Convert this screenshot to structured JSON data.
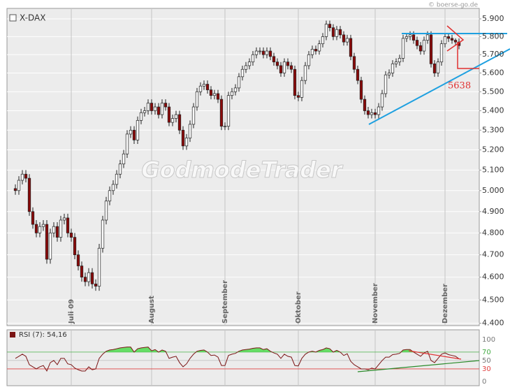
{
  "chart_data": [
    {
      "type": "candlestick",
      "title": "X-DAX",
      "watermark": "GodmodeTrader",
      "source": "© boerse-go.de",
      "annotation": "5638",
      "up_color": "#ffffff",
      "down_color": "#8b0a0a",
      "log_scale": true,
      "grid": true,
      "x": [
        0,
        1,
        2,
        3,
        4,
        5,
        6,
        7,
        8,
        9,
        10,
        11,
        12,
        13,
        14,
        15,
        16,
        17,
        18,
        19,
        20,
        21,
        22,
        23,
        24,
        25,
        26,
        27,
        28,
        29,
        30,
        31,
        32,
        33,
        34,
        35,
        36,
        37,
        38,
        39,
        40,
        41,
        42,
        43,
        44,
        45,
        46,
        47,
        48,
        49,
        50,
        51,
        52,
        53,
        54,
        55,
        56,
        57,
        58,
        59,
        60,
        61,
        62,
        63,
        64,
        65,
        66,
        67,
        68,
        69,
        70,
        71,
        72,
        73,
        74,
        75,
        76,
        77,
        78,
        79,
        80,
        81,
        82,
        83,
        84,
        85,
        86,
        87,
        88,
        89,
        90,
        91,
        92,
        93,
        94,
        95,
        96,
        97,
        98,
        99,
        100,
        101,
        102,
        103,
        104,
        105,
        106,
        107,
        108,
        109,
        110,
        111,
        112,
        113,
        114,
        115,
        116,
        117,
        118,
        119,
        120,
        121,
        122,
        123,
        124,
        125,
        126,
        127
      ],
      "open": [
        5010,
        5000,
        5050,
        5080,
        5060,
        4900,
        4840,
        4800,
        4830,
        4840,
        4680,
        4800,
        4830,
        4780,
        4860,
        4870,
        4800,
        4780,
        4700,
        4650,
        4600,
        4580,
        4620,
        4570,
        4560,
        4730,
        4860,
        4950,
        5000,
        5030,
        5080,
        5130,
        5180,
        5280,
        5300,
        5250,
        5350,
        5390,
        5400,
        5440,
        5400,
        5420,
        5380,
        5440,
        5420,
        5340,
        5360,
        5380,
        5300,
        5220,
        5260,
        5330,
        5420,
        5500,
        5530,
        5540,
        5510,
        5480,
        5490,
        5460,
        5320,
        5320,
        5480,
        5500,
        5520,
        5580,
        5620,
        5640,
        5660,
        5700,
        5720,
        5720,
        5700,
        5720,
        5690,
        5660,
        5640,
        5600,
        5660,
        5640,
        5620,
        5480,
        5470,
        5560,
        5640,
        5700,
        5730,
        5720,
        5760,
        5800,
        5870,
        5850,
        5800,
        5840,
        5810,
        5770,
        5790,
        5690,
        5620,
        5560,
        5460,
        5400,
        5380,
        5390,
        5380,
        5420,
        5490,
        5590,
        5600,
        5650,
        5660,
        5680,
        5790,
        5800,
        5810,
        5780,
        5750,
        5720,
        5780,
        5810,
        5650,
        5600,
        5660,
        5760,
        5800,
        5790,
        5780,
        5770
      ],
      "high": [
        5030,
        5070,
        5100,
        5100,
        5080,
        4920,
        4860,
        4850,
        4860,
        4860,
        4820,
        4850,
        4850,
        4880,
        4890,
        4890,
        4820,
        4800,
        4720,
        4670,
        4620,
        4640,
        4640,
        4590,
        4750,
        4880,
        4970,
        5020,
        5050,
        5100,
        5150,
        5200,
        5300,
        5320,
        5320,
        5370,
        5410,
        5420,
        5460,
        5460,
        5440,
        5440,
        5460,
        5460,
        5440,
        5380,
        5400,
        5400,
        5320,
        5280,
        5350,
        5440,
        5520,
        5550,
        5560,
        5560,
        5530,
        5510,
        5510,
        5480,
        5340,
        5500,
        5520,
        5540,
        5600,
        5640,
        5660,
        5680,
        5720,
        5740,
        5740,
        5740,
        5740,
        5740,
        5710,
        5680,
        5660,
        5680,
        5680,
        5660,
        5640,
        5500,
        5580,
        5660,
        5720,
        5750,
        5750,
        5780,
        5820,
        5890,
        5890,
        5870,
        5860,
        5860,
        5830,
        5810,
        5810,
        5710,
        5640,
        5580,
        5480,
        5420,
        5410,
        5410,
        5440,
        5510,
        5610,
        5620,
        5670,
        5680,
        5700,
        5810,
        5820,
        5830,
        5830,
        5800,
        5770,
        5800,
        5830,
        5830,
        5670,
        5680,
        5780,
        5820,
        5820,
        5810,
        5790,
        5790
      ],
      "low": [
        4980,
        4980,
        5030,
        5040,
        4880,
        4820,
        4780,
        4780,
        4810,
        4660,
        4660,
        4780,
        4760,
        4760,
        4840,
        4780,
        4760,
        4680,
        4630,
        4580,
        4560,
        4560,
        4550,
        4540,
        4540,
        4710,
        4840,
        4930,
        4980,
        5010,
        5060,
        5110,
        5160,
        5260,
        5230,
        5230,
        5330,
        5370,
        5380,
        5380,
        5380,
        5360,
        5360,
        5400,
        5320,
        5320,
        5340,
        5280,
        5200,
        5200,
        5240,
        5310,
        5400,
        5480,
        5510,
        5490,
        5460,
        5460,
        5440,
        5300,
        5300,
        5300,
        5460,
        5480,
        5500,
        5560,
        5600,
        5620,
        5640,
        5680,
        5700,
        5680,
        5680,
        5670,
        5640,
        5620,
        5580,
        5580,
        5620,
        5600,
        5460,
        5450,
        5450,
        5540,
        5620,
        5680,
        5700,
        5700,
        5740,
        5780,
        5830,
        5780,
        5780,
        5790,
        5750,
        5750,
        5670,
        5600,
        5540,
        5440,
        5380,
        5360,
        5360,
        5360,
        5360,
        5400,
        5470,
        5570,
        5580,
        5630,
        5640,
        5660,
        5770,
        5780,
        5760,
        5730,
        5700,
        5700,
        5760,
        5630,
        5580,
        5580,
        5640,
        5740,
        5770,
        5760,
        5750,
        5730
      ],
      "close": [
        5000,
        5050,
        5080,
        5060,
        4900,
        4840,
        4800,
        4830,
        4840,
        4680,
        4800,
        4830,
        4780,
        4860,
        4870,
        4800,
        4780,
        4700,
        4650,
        4600,
        4580,
        4620,
        4570,
        4560,
        4730,
        4860,
        4950,
        5000,
        5030,
        5080,
        5130,
        5180,
        5280,
        5300,
        5250,
        5350,
        5390,
        5400,
        5440,
        5400,
        5420,
        5380,
        5440,
        5420,
        5340,
        5360,
        5380,
        5300,
        5220,
        5260,
        5330,
        5420,
        5500,
        5530,
        5540,
        5510,
        5480,
        5490,
        5460,
        5320,
        5320,
        5480,
        5500,
        5520,
        5580,
        5620,
        5640,
        5660,
        5700,
        5720,
        5720,
        5700,
        5720,
        5690,
        5660,
        5640,
        5600,
        5660,
        5640,
        5620,
        5480,
        5470,
        5560,
        5640,
        5700,
        5730,
        5720,
        5760,
        5800,
        5870,
        5850,
        5800,
        5840,
        5810,
        5770,
        5790,
        5690,
        5620,
        5560,
        5460,
        5400,
        5380,
        5390,
        5380,
        5420,
        5490,
        5590,
        5600,
        5650,
        5660,
        5680,
        5790,
        5800,
        5810,
        5780,
        5750,
        5720,
        5780,
        5810,
        5650,
        5600,
        5660,
        5760,
        5800,
        5790,
        5780,
        5770,
        5750
      ],
      "xlim": [
        -2.4,
        132.8
      ],
      "xticks": [
        {
          "value": 16,
          "label": "Juli 09"
        },
        {
          "value": 39,
          "label": "August"
        },
        {
          "value": 60,
          "label": "September"
        },
        {
          "value": 81,
          "label": "Oktober"
        },
        {
          "value": 103,
          "label": "November"
        },
        {
          "value": 123,
          "label": "Dezember"
        }
      ],
      "ylim": [
        4390,
        5960
      ],
      "yticks": [
        {
          "value": 4400,
          "label": "4.400"
        },
        {
          "value": 4500,
          "label": "4.500"
        },
        {
          "value": 4600,
          "label": "4.600"
        },
        {
          "value": 4700,
          "label": "4.700"
        },
        {
          "value": 4800,
          "label": "4.800"
        },
        {
          "value": 4900,
          "label": "4.900"
        },
        {
          "value": 5000,
          "label": "5.000"
        },
        {
          "value": 5100,
          "label": "5.100"
        },
        {
          "value": 5200,
          "label": "5.200"
        },
        {
          "value": 5300,
          "label": "5.300"
        },
        {
          "value": 5400,
          "label": "5.400"
        },
        {
          "value": 5500,
          "label": "5.500"
        },
        {
          "value": 5600,
          "label": "5.600"
        },
        {
          "value": 5700,
          "label": "5.700"
        },
        {
          "value": 5800,
          "label": "5.800"
        },
        {
          "value": 5900,
          "label": "5.900"
        }
      ]
    },
    {
      "type": "line",
      "title": "RSI (7): 54,16",
      "color": "#7a1414",
      "fill_color": "#66dd66",
      "overbought": 70,
      "oversold": 30,
      "x": [
        0,
        1,
        2,
        3,
        4,
        5,
        6,
        7,
        8,
        9,
        10,
        11,
        12,
        13,
        14,
        15,
        16,
        17,
        18,
        19,
        20,
        21,
        22,
        23,
        24,
        25,
        26,
        27,
        28,
        29,
        30,
        31,
        32,
        33,
        34,
        35,
        36,
        37,
        38,
        39,
        40,
        41,
        42,
        43,
        44,
        45,
        46,
        47,
        48,
        49,
        50,
        51,
        52,
        53,
        54,
        55,
        56,
        57,
        58,
        59,
        60,
        61,
        62,
        63,
        64,
        65,
        66,
        67,
        68,
        69,
        70,
        71,
        72,
        73,
        74,
        75,
        76,
        77,
        78,
        79,
        80,
        81,
        82,
        83,
        84,
        85,
        86,
        87,
        88,
        89,
        90,
        91,
        92,
        93,
        94,
        95,
        96,
        97,
        98,
        99,
        100,
        101,
        102,
        103,
        104,
        105,
        106,
        107,
        108,
        109,
        110,
        111,
        112,
        113,
        114,
        115,
        116,
        117,
        118,
        119,
        120,
        121,
        122,
        123,
        124,
        125,
        126,
        127
      ],
      "values": [
        55,
        60,
        65,
        60,
        40,
        35,
        30,
        35,
        38,
        25,
        45,
        50,
        40,
        55,
        55,
        42,
        40,
        32,
        28,
        25,
        25,
        35,
        28,
        30,
        55,
        65,
        72,
        75,
        76,
        78,
        80,
        81,
        82,
        82,
        70,
        78,
        80,
        81,
        82,
        73,
        76,
        70,
        75,
        72,
        55,
        58,
        60,
        45,
        35,
        42,
        55,
        65,
        72,
        74,
        75,
        70,
        62,
        63,
        58,
        38,
        38,
        62,
        65,
        67,
        72,
        75,
        76,
        77,
        79,
        80,
        80,
        76,
        78,
        72,
        68,
        65,
        55,
        65,
        60,
        58,
        38,
        37,
        55,
        65,
        70,
        72,
        70,
        74,
        76,
        80,
        78,
        70,
        74,
        70,
        62,
        66,
        48,
        40,
        35,
        30,
        30,
        28,
        32,
        30,
        40,
        50,
        58,
        58,
        64,
        65,
        67,
        75,
        76,
        76,
        70,
        65,
        60,
        68,
        72,
        50,
        45,
        55,
        65,
        68,
        64,
        62,
        60,
        54
      ],
      "xlim": [
        -2.4,
        132.8
      ],
      "ylim": [
        -10,
        123
      ],
      "yticks": [
        0,
        30,
        50,
        70,
        100
      ]
    }
  ]
}
